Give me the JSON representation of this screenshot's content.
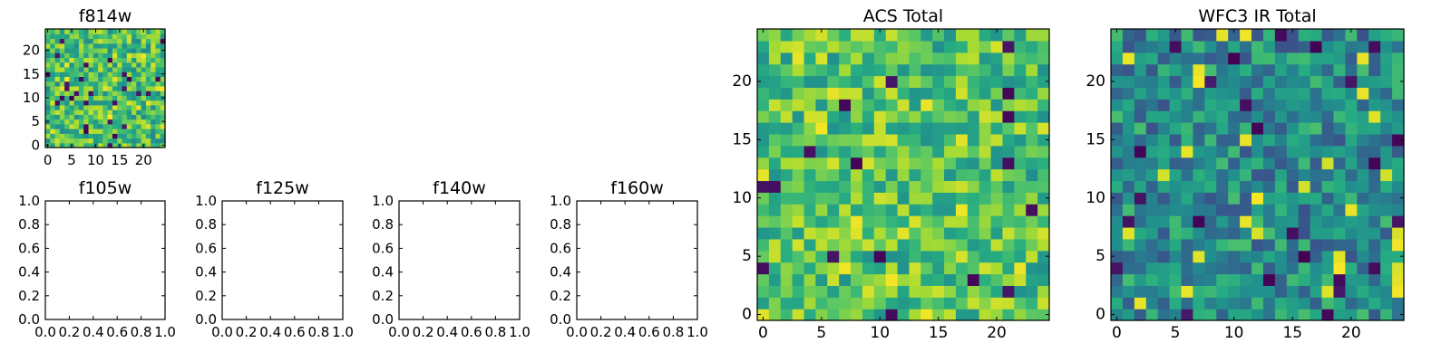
{
  "figure": {
    "description": "Grid of image panels for HST filters"
  },
  "chart_data": [
    {
      "id": "f814w",
      "type": "heatmap",
      "title": "f814w",
      "grid": 25,
      "seed": 814,
      "empty": false,
      "xticks": [
        "0",
        "5",
        "10",
        "15",
        "20"
      ],
      "yticks": [
        "0",
        "5",
        "10",
        "15",
        "20"
      ],
      "xlim": [
        -0.5,
        24.5
      ],
      "ylim": [
        -0.5,
        24.5
      ]
    },
    {
      "id": "acs-total",
      "type": "heatmap",
      "title": "ACS Total",
      "grid": 25,
      "seed": 4242,
      "empty": false,
      "xticks": [
        "0",
        "5",
        "10",
        "15",
        "20"
      ],
      "yticks": [
        "0",
        "5",
        "10",
        "15",
        "20"
      ],
      "xlim": [
        -0.5,
        24.5
      ],
      "ylim": [
        -0.5,
        24.5
      ]
    },
    {
      "id": "wfc3-ir-total",
      "type": "heatmap",
      "title": "WFC3 IR Total",
      "grid": 25,
      "seed": 3131,
      "empty": false,
      "xticks": [
        "0",
        "5",
        "10",
        "15",
        "20"
      ],
      "yticks": [
        "0",
        "5",
        "10",
        "15",
        "20"
      ],
      "xlim": [
        -0.5,
        24.5
      ],
      "ylim": [
        -0.5,
        24.5
      ]
    },
    {
      "id": "f105w",
      "type": "heatmap",
      "title": "f105w",
      "empty": true,
      "xticks": [
        "0.0",
        "0.2",
        "0.4",
        "0.6",
        "0.8",
        "1.0"
      ],
      "yticks": [
        "0.0",
        "0.2",
        "0.4",
        "0.6",
        "0.8",
        "1.0"
      ],
      "xlim": [
        0,
        1
      ],
      "ylim": [
        0,
        1
      ]
    },
    {
      "id": "f125w",
      "type": "heatmap",
      "title": "f125w",
      "empty": true,
      "xticks": [
        "0.0",
        "0.2",
        "0.4",
        "0.6",
        "0.8",
        "1.0"
      ],
      "yticks": [
        "0.0",
        "0.2",
        "0.4",
        "0.6",
        "0.8",
        "1.0"
      ],
      "xlim": [
        0,
        1
      ],
      "ylim": [
        0,
        1
      ]
    },
    {
      "id": "f140w",
      "type": "heatmap",
      "title": "f140w",
      "empty": true,
      "xticks": [
        "0.0",
        "0.2",
        "0.4",
        "0.6",
        "0.8",
        "1.0"
      ],
      "yticks": [
        "0.0",
        "0.2",
        "0.4",
        "0.6",
        "0.8",
        "1.0"
      ],
      "xlim": [
        0,
        1
      ],
      "ylim": [
        0,
        1
      ]
    },
    {
      "id": "f160w",
      "type": "heatmap",
      "title": "f160w",
      "empty": true,
      "xticks": [
        "0.0",
        "0.2",
        "0.4",
        "0.6",
        "0.8",
        "1.0"
      ],
      "yticks": [
        "0.0",
        "0.2",
        "0.4",
        "0.6",
        "0.8",
        "1.0"
      ],
      "xlim": [
        0,
        1
      ],
      "ylim": [
        0,
        1
      ]
    }
  ],
  "colors": {
    "axis": "#000000",
    "background": "#ffffff"
  }
}
